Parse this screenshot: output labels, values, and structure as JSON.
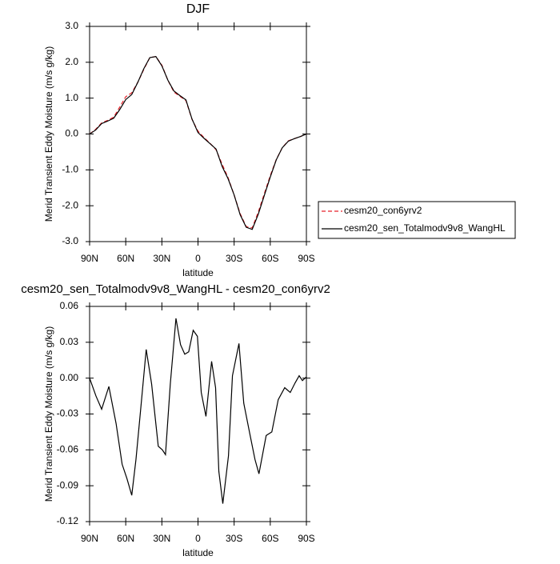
{
  "chart_data": [
    {
      "type": "line",
      "title": "DJF",
      "xlabel": "latitude",
      "ylabel": "Merid Transient Eddy Moisture (m/s g/kg)",
      "x": [
        90,
        85,
        80,
        75,
        70,
        65,
        60,
        55,
        50,
        45,
        40,
        35,
        30,
        25,
        20,
        15,
        10,
        5,
        0,
        -5,
        -10,
        -15,
        -20,
        -25,
        -30,
        -35,
        -40,
        -45,
        -50,
        -55,
        -60,
        -65,
        -70,
        -75,
        -80,
        -85,
        -90
      ],
      "series": [
        {
          "name": "cesm20_con6yrv2",
          "color": "#e8222a",
          "dashed": true,
          "values": [
            0.0,
            0.13,
            0.31,
            0.38,
            0.47,
            0.75,
            1.04,
            1.15,
            1.44,
            1.8,
            2.13,
            2.16,
            1.92,
            1.5,
            1.17,
            1.05,
            0.93,
            0.41,
            0.08,
            -0.1,
            -0.26,
            -0.44,
            -0.84,
            -1.22,
            -1.7,
            -2.22,
            -2.58,
            -2.62,
            -2.18,
            -1.67,
            -1.16,
            -0.71,
            -0.38,
            -0.19,
            -0.13,
            -0.07,
            0.0
          ]
        },
        {
          "name": "cesm20_sen_Totalmodv9v8_WangHL",
          "color": "#000000",
          "dashed": false,
          "values": [
            0.0,
            0.11,
            0.29,
            0.36,
            0.44,
            0.68,
            0.96,
            1.1,
            1.44,
            1.82,
            2.13,
            2.16,
            1.9,
            1.5,
            1.2,
            1.07,
            0.95,
            0.42,
            0.04,
            -0.12,
            -0.27,
            -0.42,
            -0.9,
            -1.25,
            -1.7,
            -2.25,
            -2.6,
            -2.66,
            -2.24,
            -1.72,
            -1.2,
            -0.72,
            -0.38,
            -0.2,
            -0.13,
            -0.07,
            0.0
          ]
        }
      ],
      "xlim": [
        90,
        -90
      ],
      "xticks": [
        {
          "value": 90,
          "label": "90N"
        },
        {
          "value": 60,
          "label": "60N"
        },
        {
          "value": 30,
          "label": "30N"
        },
        0,
        {
          "value": -30,
          "label": "30S"
        },
        {
          "value": -60,
          "label": "60S"
        },
        {
          "value": -90,
          "label": "90S"
        }
      ],
      "ylim": [
        -3,
        3
      ],
      "yticks": [
        {
          "value": 3,
          "label": "3.0"
        },
        {
          "value": 2,
          "label": "2.0"
        },
        {
          "value": 1,
          "label": "1.0"
        },
        {
          "value": 0,
          "label": "0.0"
        },
        {
          "value": -1,
          "label": "-1.0"
        },
        {
          "value": -2,
          "label": "-2.0"
        },
        {
          "value": -3,
          "label": "-3.0"
        }
      ],
      "legend": "outside-right"
    },
    {
      "type": "line",
      "title": "cesm20_sen_Totalmodv9v8_WangHL - cesm20_con6yrv2",
      "xlabel": "latitude",
      "ylabel": "Merid Transient Eddy Moisture (m/s g/kg)",
      "x": [
        90,
        84.7,
        80,
        74,
        68,
        63,
        59,
        55,
        51.5,
        47.5,
        43,
        38.5,
        33,
        29.6,
        27,
        23,
        18.3,
        14.5,
        11,
        7.7,
        4,
        0.5,
        -2.7,
        -6.6,
        -11.3,
        -14.6,
        -17.3,
        -20.6,
        -25.3,
        -28.6,
        -34,
        -38,
        -43.3,
        -47.3,
        -50.6,
        -56.6,
        -61.3,
        -66.6,
        -72,
        -76.6,
        -80.6,
        -84,
        -86.7,
        -90
      ],
      "series": [
        {
          "color": "#000000",
          "dashed": false,
          "values": [
            0.0,
            -0.015,
            -0.026,
            -0.007,
            -0.038,
            -0.072,
            -0.084,
            -0.098,
            -0.068,
            -0.025,
            0.024,
            -0.005,
            -0.057,
            -0.06,
            -0.064,
            -0.005,
            0.05,
            0.028,
            0.02,
            0.022,
            0.04,
            0.035,
            -0.012,
            -0.032,
            0.014,
            -0.008,
            -0.078,
            -0.105,
            -0.065,
            0.002,
            0.029,
            -0.021,
            -0.048,
            -0.068,
            -0.08,
            -0.048,
            -0.045,
            -0.018,
            -0.008,
            -0.012,
            -0.004,
            0.002,
            -0.002,
            0.001
          ]
        }
      ],
      "xlim": [
        90,
        -90
      ],
      "xticks": [
        {
          "value": 90,
          "label": "90N"
        },
        {
          "value": 60,
          "label": "60N"
        },
        {
          "value": 30,
          "label": "30N"
        },
        0,
        {
          "value": -30,
          "label": "30S"
        },
        {
          "value": -60,
          "label": "60S"
        },
        {
          "value": -90,
          "label": "90S"
        }
      ],
      "ylim": [
        -0.12,
        0.06
      ],
      "yticks": [
        0.06,
        0.03,
        {
          "value": 0,
          "label": "0.00"
        },
        -0.03,
        -0.06,
        -0.09,
        -0.12
      ]
    }
  ]
}
